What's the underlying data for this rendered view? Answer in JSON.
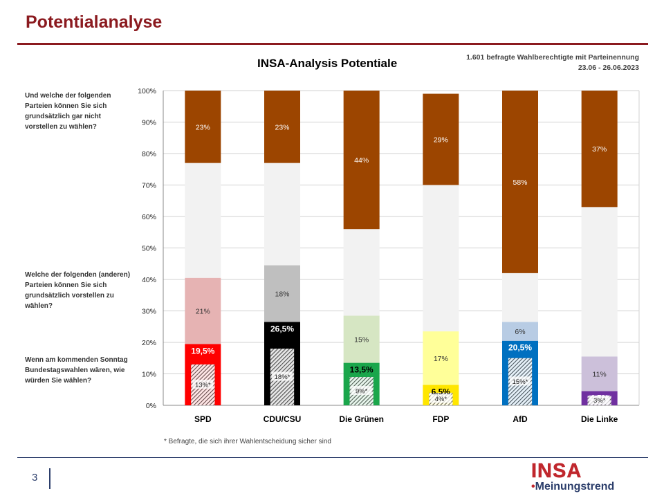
{
  "page": {
    "title": "Potentialanalyse",
    "chart_title": "INSA-Analysis Potentiale",
    "meta_line1": "1.601 befragte Wahlberechtigte mit Parteinennung",
    "meta_line2": "23.06 - 26.06.2023",
    "question_top": "Und welche der folgenden Parteien können Sie sich grundsätzlich  gar nicht vorstellen zu wählen?",
    "question_middle": "Welche der folgenden (anderen) Parteien können Sie sich  grundsätzlich vorstellen zu wählen?",
    "question_bottom": "Wenn am kommenden Sonntag Bundestagswahlen wären, wie würden Sie wählen?",
    "footnote": "* Befragte, die sich ihrer Wahlentscheidung sicher sind",
    "page_number": "3",
    "logo_text": "INSA",
    "logo_subtext": "Meinungstrend"
  },
  "chart_data": {
    "type": "bar",
    "stacked": true,
    "title": "INSA-Analysis Potentiale",
    "ylim": [
      0,
      100
    ],
    "y_ticks": [
      "0%",
      "10%",
      "20%",
      "30%",
      "40%",
      "50%",
      "60%",
      "70%",
      "80%",
      "90%",
      "100%"
    ],
    "categories": [
      "SPD",
      "CDU/CSU",
      "Die Grünen",
      "FDP",
      "AfD",
      "Die Linke"
    ],
    "series": [
      {
        "name": "",
        "values": [
          19.5,
          26.5,
          13.5,
          6.5,
          20.5,
          4.5
        ],
        "labels": [
          "19,5%",
          "26,5%",
          "13,5%",
          "6,5%",
          "20,5%",
          "4,5%"
        ]
      },
      {
        "name": "",
        "values": [
          21,
          18,
          15,
          17,
          6,
          11
        ],
        "labels": [
          "21%",
          "18%",
          "15%",
          "17%",
          "6%",
          "11%"
        ]
      },
      {
        "name": "",
        "values": [
          36.5,
          32.5,
          27.5,
          46.5,
          15.5,
          47.5
        ],
        "labels": [
          "",
          "",
          "",
          "",
          "",
          ""
        ]
      },
      {
        "name": "",
        "values": [
          23,
          23,
          44,
          29,
          58,
          37
        ],
        "labels": [
          "23%",
          "23%",
          "44%",
          "29%",
          "58%",
          "37%"
        ]
      }
    ],
    "sure_voters": {
      "values": [
        13,
        18,
        9,
        4,
        15,
        3
      ],
      "labels": [
        "13%*",
        "18%*",
        "9%*",
        "4%*",
        "15%*",
        "3%*"
      ]
    },
    "colors": {
      "vote": [
        "#ff0000",
        "#000000",
        "#1aa64b",
        "#ffe600",
        "#0070c0",
        "#7030a0"
      ],
      "potential": [
        "#e6b3b3",
        "#bfbfbf",
        "#d6e6c3",
        "#ffff99",
        "#b8cce4",
        "#ccc0da"
      ],
      "undecided": "#f2f2f2",
      "reject": "#9c4500"
    },
    "grid": true,
    "legend": "none"
  }
}
